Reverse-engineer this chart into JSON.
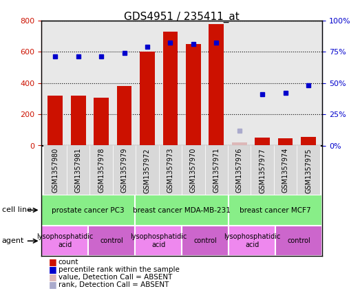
{
  "title": "GDS4951 / 235411_at",
  "samples": [
    "GSM1357980",
    "GSM1357981",
    "GSM1357978",
    "GSM1357979",
    "GSM1357972",
    "GSM1357973",
    "GSM1357970",
    "GSM1357971",
    "GSM1357976",
    "GSM1357977",
    "GSM1357974",
    "GSM1357975"
  ],
  "counts": [
    320,
    320,
    305,
    380,
    600,
    730,
    650,
    775,
    20,
    50,
    45,
    55
  ],
  "percentile_ranks": [
    71,
    71,
    71,
    74,
    79,
    82,
    81,
    82,
    null,
    41,
    42,
    48
  ],
  "absent_mask": [
    false,
    false,
    false,
    false,
    false,
    false,
    false,
    false,
    true,
    false,
    false,
    false
  ],
  "absent_rank_value": 12,
  "bar_color": "#cc1100",
  "rank_color": "#0000cc",
  "absent_bar_color": "#ddb8b8",
  "absent_rank_color": "#aaaacc",
  "ylim_left": [
    0,
    800
  ],
  "ylim_right": [
    0,
    100
  ],
  "yticks_left": [
    0,
    200,
    400,
    600,
    800
  ],
  "yticks_right": [
    0,
    25,
    50,
    75,
    100
  ],
  "tick_label_color_left": "#cc1100",
  "tick_label_color_right": "#0000cc",
  "plot_bg_color": "#e8e8e8",
  "cell_line_label": "cell line",
  "agent_label": "agent",
  "cl_groups": [
    {
      "label": "prostate cancer PC3",
      "start": 0,
      "end": 4,
      "color": "#88ee88"
    },
    {
      "label": "breast cancer MDA-MB-231",
      "start": 4,
      "end": 8,
      "color": "#88ee88"
    },
    {
      "label": "breast cancer MCF7",
      "start": 8,
      "end": 12,
      "color": "#88ee88"
    }
  ],
  "ag_groups": [
    {
      "label": "lysophosphatidic\nacid",
      "start": 0,
      "end": 2,
      "color": "#ee88ee"
    },
    {
      "label": "control",
      "start": 2,
      "end": 4,
      "color": "#cc66cc"
    },
    {
      "label": "lysophosphatidic\nacid",
      "start": 4,
      "end": 6,
      "color": "#ee88ee"
    },
    {
      "label": "control",
      "start": 6,
      "end": 8,
      "color": "#cc66cc"
    },
    {
      "label": "lysophosphatidic\nacid",
      "start": 8,
      "end": 10,
      "color": "#ee88ee"
    },
    {
      "label": "control",
      "start": 10,
      "end": 12,
      "color": "#cc66cc"
    }
  ],
  "legend_items": [
    {
      "label": "count",
      "color": "#cc1100"
    },
    {
      "label": "percentile rank within the sample",
      "color": "#0000cc"
    },
    {
      "label": "value, Detection Call = ABSENT",
      "color": "#ddb8b8"
    },
    {
      "label": "rank, Detection Call = ABSENT",
      "color": "#aaaacc"
    }
  ]
}
